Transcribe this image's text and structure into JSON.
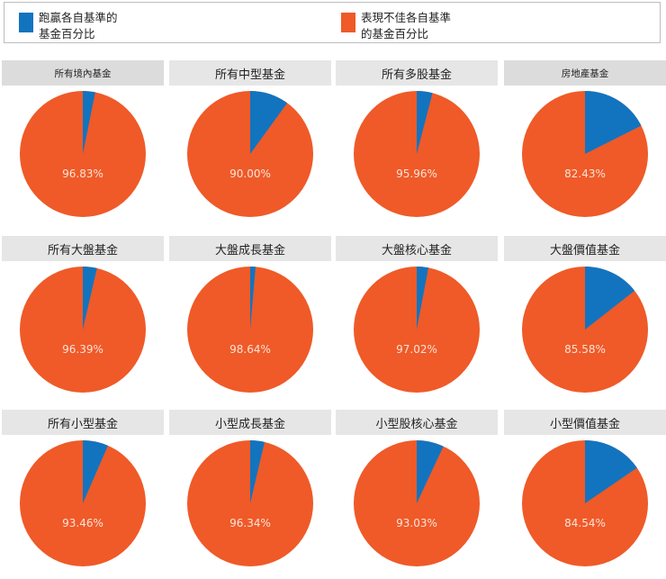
{
  "colors": {
    "outperform": "#1274bf",
    "underperform": "#ef5a28",
    "header_bg": "#e6e6e6"
  },
  "legend": {
    "items": [
      {
        "label_line1": "跑贏各自基準的",
        "label_line2": "基金百分比",
        "color": "#1274bf"
      },
      {
        "label_line1": "表現不佳各自基準",
        "label_line2": "的基金百分比",
        "color": "#ef5a28"
      }
    ]
  },
  "panels": [
    {
      "title": "所有境內基金",
      "label": "96.83%"
    },
    {
      "title": "所有中型基金",
      "label": "90.00%"
    },
    {
      "title": "所有多股基金",
      "label": "95.96%"
    },
    {
      "title": "房地產基金",
      "label": "82.43%"
    },
    {
      "title": "所有大盤基金",
      "label": "96.39%"
    },
    {
      "title": "大盤成長基金",
      "label": "98.64%"
    },
    {
      "title": "大盤核心基金",
      "label": "97.02%"
    },
    {
      "title": "大盤價值基金",
      "label": "85.58%"
    },
    {
      "title": "所有小型基金",
      "label": "93.46%"
    },
    {
      "title": "小型成長基金",
      "label": "96.34%"
    },
    {
      "title": "小型股核心基金",
      "label": "93.03%"
    },
    {
      "title": "小型價值基金",
      "label": "84.54%"
    }
  ],
  "chart_data": {
    "type": "pie",
    "title": "",
    "legend": [
      "跑贏各自基準的基金百分比",
      "表現不佳各自基準的基金百分比"
    ],
    "legend_position": "top",
    "series_names": [
      "outperform",
      "underperform"
    ],
    "categories": [
      "所有境內基金",
      "所有中型基金",
      "所有多股基金",
      "房地產基金",
      "所有大盤基金",
      "大盤成長基金",
      "大盤核心基金",
      "大盤價值基金",
      "所有小型基金",
      "小型成長基金",
      "小型股核心基金",
      "小型價值基金"
    ],
    "underperform_pct": [
      96.83,
      90.0,
      95.96,
      82.43,
      96.39,
      98.64,
      97.02,
      85.58,
      93.46,
      96.34,
      93.03,
      84.54
    ],
    "outperform_pct": [
      3.17,
      10.0,
      4.04,
      17.57,
      3.61,
      1.36,
      2.98,
      14.42,
      6.54,
      3.66,
      6.97,
      15.46
    ]
  }
}
